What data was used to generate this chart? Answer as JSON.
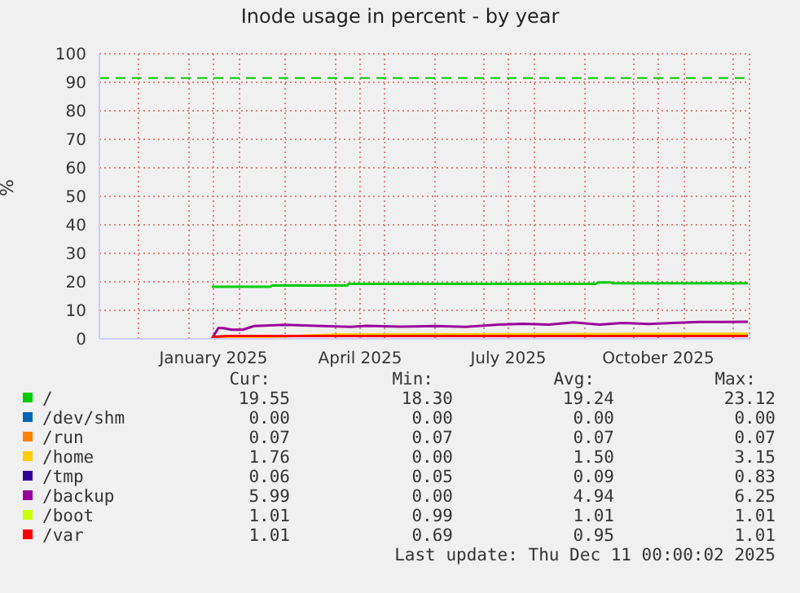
{
  "chart_data": {
    "type": "line",
    "title": "Inode usage in percent - by year",
    "ylabel": "%",
    "xlim": [
      "2024-11-07",
      "2025-12-11"
    ],
    "ylim": [
      0,
      100
    ],
    "yticks": [
      0,
      10,
      20,
      30,
      40,
      50,
      60,
      70,
      80,
      90,
      100
    ],
    "xticks": [
      {
        "value": "2024-12-01",
        "label": null
      },
      {
        "value": "2025-01-01",
        "label": null
      },
      {
        "value": "2025-01-16",
        "label": "January 2025"
      },
      {
        "value": "2025-02-01",
        "label": null
      },
      {
        "value": "2025-03-01",
        "label": null
      },
      {
        "value": "2025-04-01",
        "label": null
      },
      {
        "value": "2025-04-16",
        "label": "April 2025"
      },
      {
        "value": "2025-05-01",
        "label": null
      },
      {
        "value": "2025-06-01",
        "label": null
      },
      {
        "value": "2025-07-01",
        "label": null
      },
      {
        "value": "2025-07-16",
        "label": "July 2025"
      },
      {
        "value": "2025-08-01",
        "label": null
      },
      {
        "value": "2025-09-01",
        "label": null
      },
      {
        "value": "2025-10-01",
        "label": null
      },
      {
        "value": "2025-10-16",
        "label": "October 2025"
      },
      {
        "value": "2025-11-01",
        "label": null
      },
      {
        "value": "2025-12-01",
        "label": null
      }
    ],
    "grid": true,
    "legend": "bottom",
    "marker": "none",
    "line_style": "solid",
    "ref_lines": [
      {
        "axis": "y",
        "value": 91.5,
        "color": "#00cc00",
        "line_style": "dashed"
      }
    ],
    "series": [
      {
        "name": "/",
        "color": "#00cc00",
        "x": [
          "2025-01-15",
          "2025-02-20",
          "2025-02-21",
          "2025-04-08",
          "2025-04-09",
          "2025-09-08",
          "2025-09-09",
          "2025-09-17",
          "2025-09-18",
          "2025-12-10"
        ],
        "values": [
          18.3,
          18.3,
          18.7,
          18.7,
          19.3,
          19.3,
          19.8,
          19.8,
          19.5,
          19.5
        ]
      },
      {
        "name": "/dev/shm",
        "color": "#0066b3"
      },
      {
        "name": "/run",
        "color": "#ff8000"
      },
      {
        "name": "/home",
        "color": "#ffcc00",
        "x": [
          "2025-01-15",
          "2025-04-01",
          "2025-12-10"
        ],
        "values": [
          0,
          1.5,
          1.8
        ]
      },
      {
        "name": "/tmp",
        "color": "#330099"
      },
      {
        "name": "/backup",
        "color": "#990099",
        "x": [
          "2025-01-15",
          "2025-01-19",
          "2025-01-22",
          "2025-01-27",
          "2025-02-03",
          "2025-02-10",
          "2025-03-01",
          "2025-03-20",
          "2025-04-10",
          "2025-04-20",
          "2025-05-10",
          "2025-06-01",
          "2025-06-20",
          "2025-07-10",
          "2025-07-25",
          "2025-08-10",
          "2025-08-25",
          "2025-09-10",
          "2025-09-25",
          "2025-10-10",
          "2025-10-25",
          "2025-11-10",
          "2025-11-25",
          "2025-12-10"
        ],
        "values": [
          0,
          3.8,
          3.8,
          3.2,
          3.2,
          4.5,
          4.9,
          4.6,
          4.2,
          4.6,
          4.3,
          4.5,
          4.2,
          5,
          5.3,
          5,
          5.8,
          5,
          5.6,
          5.2,
          5.6,
          5.9,
          5.9,
          6
        ]
      },
      {
        "name": "/boot",
        "color": "#ccff00"
      },
      {
        "name": "/var",
        "color": "#ff0000",
        "x": [
          "2025-01-15",
          "2025-01-25",
          "2025-12-10"
        ],
        "values": [
          0.7,
          1,
          1
        ]
      }
    ],
    "annotations": [
      "Cur:",
      "Min:",
      "Avg:",
      "Max:",
      "19.55",
      "18.30",
      "19.24",
      "23.12",
      "0.00",
      "0.00",
      "0.00",
      "0.00",
      "0.07",
      "0.07",
      "0.07",
      "0.07",
      "1.76",
      "0.00",
      "1.50",
      "3.15",
      "0.06",
      "0.05",
      "0.09",
      "0.83",
      "5.99",
      "0.00",
      "4.94",
      "6.25",
      "1.01",
      "0.99",
      "1.01",
      "1.01",
      "1.01",
      "0.69",
      "0.95",
      "1.01",
      "Last update: Thu Dec 11 00:00:02 2025"
    ]
  }
}
